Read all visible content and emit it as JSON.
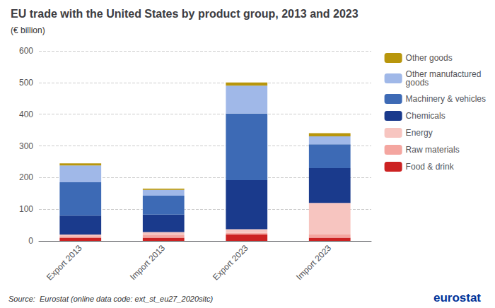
{
  "chart_data": {
    "type": "bar",
    "stacked": true,
    "title": "EU trade with the United States by product group, 2013 and 2023",
    "subtitle": "(€ billion)",
    "source": "Source:  Eurostat (online data code: ext_st_eu27_2020sitc)",
    "annotations": [
      "eurostat"
    ],
    "categories": [
      "Export 2013",
      "Import 2013",
      "Export 2023",
      "Import 2023"
    ],
    "series": [
      {
        "name": "Food & drink",
        "color": "#cc2222",
        "values": [
          10,
          10,
          20,
          10
        ]
      },
      {
        "name": "Raw materials",
        "color": "#f4a6a0",
        "values": [
          5,
          8,
          5,
          10
        ]
      },
      {
        "name": "Energy",
        "color": "#f7c5c0",
        "values": [
          5,
          10,
          12,
          100
        ]
      },
      {
        "name": "Chemicals",
        "color": "#1a3a8c",
        "values": [
          60,
          55,
          155,
          110
        ]
      },
      {
        "name": "Machinery & vehicles",
        "color": "#3d6ab5",
        "values": [
          105,
          60,
          210,
          75
        ]
      },
      {
        "name": "Other manufactured\ngoods",
        "color": "#a0b8e8",
        "values": [
          53,
          18,
          88,
          25
        ]
      },
      {
        "name": "Other goods",
        "color": "#b8960c",
        "values": [
          7,
          4,
          10,
          10
        ]
      }
    ],
    "ylim": [
      0,
      600
    ],
    "yticks": [
      0,
      100,
      200,
      300,
      400,
      500,
      600
    ],
    "grid": true,
    "legend": "upper right"
  }
}
